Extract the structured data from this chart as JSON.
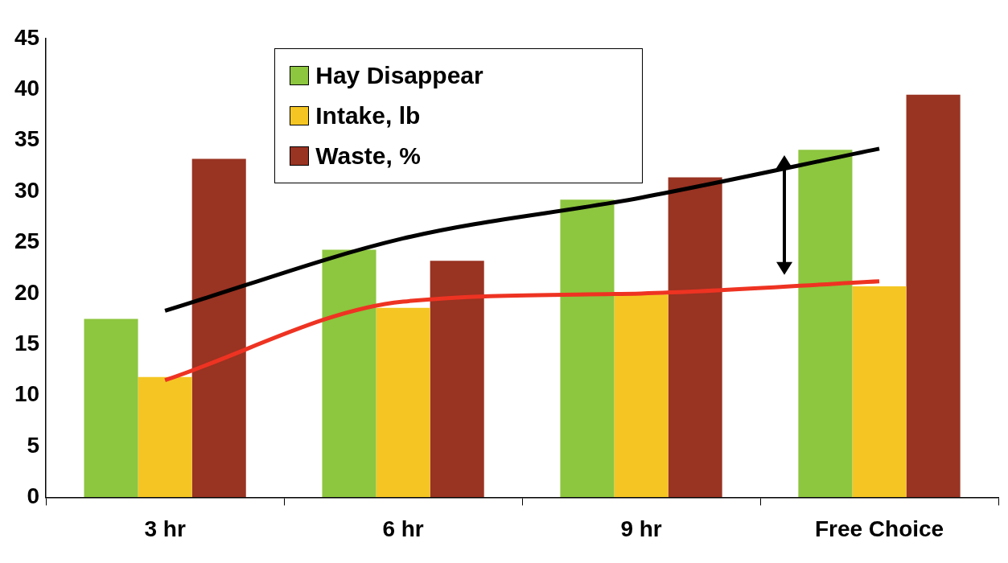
{
  "chart_data": {
    "type": "bar",
    "categories": [
      "3 hr",
      "6 hr",
      "9 hr",
      "Free Choice"
    ],
    "series": [
      {
        "name": "Hay Disappear",
        "color": "#8dc63f",
        "values": [
          17.5,
          24.3,
          29.2,
          34.1
        ]
      },
      {
        "name": "Intake, lb",
        "color": "#f5c623",
        "values": [
          11.8,
          18.6,
          19.9,
          20.7
        ]
      },
      {
        "name": "Waste, %",
        "color": "#993322",
        "values": [
          33.2,
          23.2,
          31.4,
          39.5
        ]
      },
      {
        "type": "line",
        "color": "#000000",
        "values": [
          18.3,
          25.4,
          29.4,
          34.2
        ]
      },
      {
        "type": "line",
        "color": "#ee3322",
        "values": [
          11.5,
          19.2,
          20.0,
          21.2
        ]
      }
    ],
    "ylim": [
      0,
      45
    ],
    "yticks": [
      0,
      5,
      10,
      15,
      20,
      25,
      30,
      35,
      40,
      45
    ],
    "grid": false,
    "legend": "top",
    "marker": "none",
    "line_style": "solid"
  }
}
